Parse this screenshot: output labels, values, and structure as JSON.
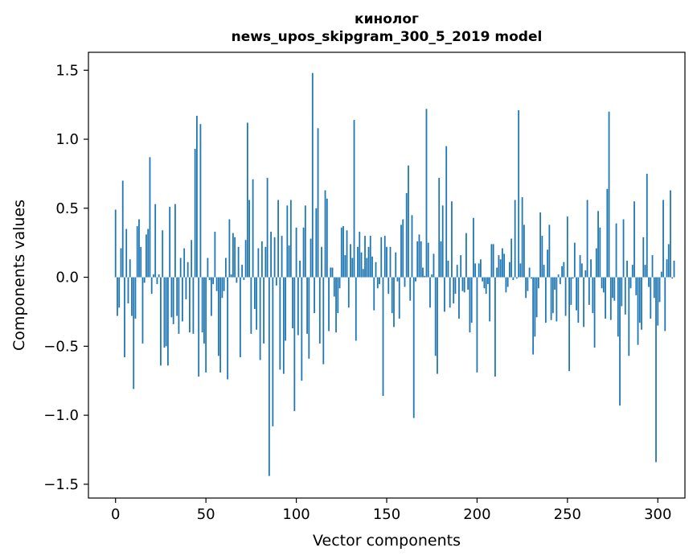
{
  "chart_data": {
    "type": "bar",
    "title": "кинолог",
    "subtitle": "news_upos_skipgram_300_5_2019 model",
    "xlabel": "Vector components",
    "ylabel": "Components values",
    "xlim": [
      -15,
      315
    ],
    "ylim": [
      -1.6,
      1.63
    ],
    "xticks": [
      0,
      50,
      100,
      150,
      200,
      250,
      300
    ],
    "yticks": [
      -1.5,
      -1.0,
      -0.5,
      0.0,
      0.5,
      1.0,
      1.5
    ],
    "xtick_labels": [
      "0",
      "50",
      "100",
      "150",
      "200",
      "250",
      "300"
    ],
    "ytick_labels": [
      "−1.5",
      "−1.0",
      "−0.5",
      "0.0",
      "0.5",
      "1.0",
      "1.5"
    ],
    "bar_color": "#1f77b4",
    "values": [
      0.49,
      -0.28,
      -0.22,
      0.21,
      0.7,
      -0.58,
      0.35,
      -0.19,
      0.13,
      -0.28,
      -0.81,
      -0.3,
      0.37,
      0.42,
      0.22,
      -0.48,
      -0.04,
      0.31,
      0.35,
      0.87,
      -0.12,
      0.02,
      0.53,
      -0.05,
      0.02,
      -0.64,
      0.34,
      -0.51,
      -0.5,
      -0.64,
      0.51,
      -0.29,
      -0.34,
      0.53,
      -0.28,
      -0.41,
      0.14,
      -0.32,
      0.21,
      -0.16,
      0.11,
      -0.4,
      0.27,
      -0.41,
      0.93,
      1.17,
      -0.72,
      1.11,
      -0.4,
      -0.48,
      -0.69,
      0.14,
      -0.02,
      -0.28,
      -0.05,
      0.33,
      -0.1,
      -0.57,
      -0.69,
      -0.15,
      -0.1,
      0.14,
      -0.74,
      0.42,
      0.02,
      0.32,
      0.29,
      -0.04,
      0.22,
      -0.58,
      0.09,
      -0.02,
      0.27,
      1.12,
      0.56,
      -0.41,
      0.71,
      -0.23,
      -0.38,
      0.21,
      -0.6,
      0.26,
      -0.48,
      0.22,
      0.72,
      -1.44,
      0.33,
      -1.08,
      0.29,
      -0.06,
      0.56,
      -0.67,
      0.3,
      -0.7,
      -0.46,
      0.52,
      0.23,
      0.56,
      -0.37,
      -0.97,
      0.36,
      -0.42,
      0.12,
      -0.75,
      0.36,
      0.52,
      -0.41,
      -0.59,
      0.28,
      1.48,
      -0.26,
      0.5,
      1.08,
      -0.48,
      0.22,
      -0.63,
      0.63,
      0.57,
      -0.39,
      0.07,
      0.07,
      -0.14,
      -0.4,
      -0.26,
      -0.08,
      0.36,
      0.37,
      0.16,
      0.34,
      -0.22,
      0.24,
      0.14,
      1.14,
      -0.46,
      0.22,
      0.33,
      0.18,
      0.06,
      0.3,
      0.14,
      0.22,
      0.3,
      0.15,
      -0.24,
      0.11,
      -0.08,
      -0.05,
      0.29,
      -0.86,
      0.3,
      0.22,
      -0.12,
      0.22,
      -0.26,
      -0.36,
      0.18,
      -0.03,
      -0.3,
      0.38,
      0.42,
      -0.07,
      0.61,
      0.81,
      -0.17,
      0.45,
      -1.02,
      -0.03,
      0.26,
      0.31,
      0.26,
      0.07,
      0.01,
      1.22,
      0.25,
      -0.22,
      0.02,
      0.17,
      -0.57,
      -0.7,
      0.72,
      0.26,
      0.52,
      -0.25,
      0.95,
      0.12,
      -0.22,
      0.55,
      -0.19,
      -0.12,
      0.09,
      -0.3,
      0.16,
      -0.1,
      -0.11,
      0.32,
      -0.09,
      -0.4,
      -0.33,
      0.43,
      0.1,
      -0.69,
      0.1,
      0.13,
      -0.03,
      -0.08,
      -0.12,
      -0.05,
      -0.32,
      0.24,
      0.24,
      -0.72,
      0.07,
      0.16,
      0.13,
      0.21,
      0.17,
      -0.11,
      -0.07,
      0.11,
      0.28,
      -0.02,
      0.56,
      -0.01,
      1.21,
      0.1,
      0.58,
      0.38,
      -0.15,
      -0.1,
      0.07,
      -0.01,
      -0.56,
      -0.43,
      -0.29,
      -0.08,
      0.47,
      0.3,
      0.09,
      -0.33,
      0.2,
      0.38,
      -0.31,
      -0.26,
      -0.09,
      -0.32,
      0.02,
      -0.05,
      0.08,
      0.11,
      -0.28,
      0.44,
      -0.68,
      -0.2,
      -0.01,
      0.25,
      -0.24,
      -0.33,
      0.16,
      0.1,
      -0.36,
      0.05,
      0.56,
      -0.2,
      0.13,
      -0.26,
      -0.51,
      0.21,
      0.48,
      0.36,
      -0.08,
      -0.11,
      -0.3,
      0.64,
      1.2,
      -0.31,
      -0.15,
      -0.17,
      0.39,
      -0.43,
      -0.93,
      -0.21,
      0.42,
      -0.27,
      0.12,
      -0.57,
      -0.08,
      0.09,
      0.55,
      -0.13,
      -0.49,
      -0.33,
      -0.38,
      0.29,
      0.09,
      0.75,
      -0.07,
      -0.3,
      0.16,
      -0.15,
      -1.34,
      -0.35,
      -0.18,
      0.04,
      0.56,
      -0.39,
      0.13,
      0.24,
      0.63,
      -0.01,
      0.12
    ]
  }
}
